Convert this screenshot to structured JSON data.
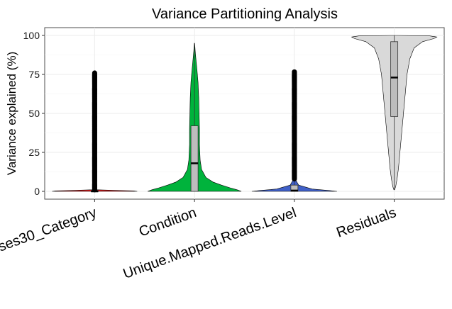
{
  "chart_data": {
    "type": "violin",
    "title": "Variance Partitioning Analysis",
    "xlabel": "",
    "ylabel": "Variance explained (%)",
    "ylim": [
      -5,
      105
    ],
    "yticks": [
      0,
      25,
      50,
      75,
      100
    ],
    "grid": true,
    "legend": "none",
    "categories": [
      "ses30_Category",
      "Condition",
      "Unique.Mapped.Reads.Level",
      "Residuals"
    ],
    "series": [
      {
        "category": "ses30_Category",
        "color": "#e41a1c",
        "min": 0,
        "q1": 0,
        "median": 0,
        "q3": 0.5,
        "max": 1,
        "outlier_range": [
          1,
          76
        ]
      },
      {
        "category": "Condition",
        "color": "#00b33c",
        "min": 0,
        "q1": 0,
        "median": 18,
        "q3": 42,
        "max": 95,
        "outlier_range": null
      },
      {
        "category": "Unique.Mapped.Reads.Level",
        "color": "#4060c8",
        "min": 0,
        "q1": 0,
        "median": 0.5,
        "q3": 4,
        "max": 8,
        "outlier_range": [
          8,
          77
        ]
      },
      {
        "category": "Residuals",
        "color": "#d9d9d9",
        "min": 1,
        "q1": 48,
        "median": 73,
        "q3": 96,
        "max": 100,
        "outlier_range": null
      }
    ]
  }
}
